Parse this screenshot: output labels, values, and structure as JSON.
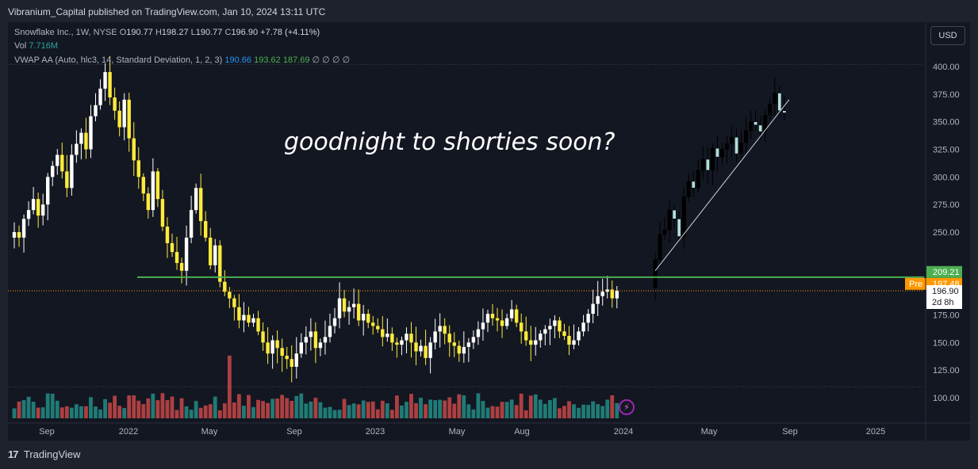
{
  "header": {
    "publisher": "Vibranium_Capital published on TradingView.com, Jan 10, 2024 13:11 UTC"
  },
  "legend": {
    "symbol": "Snowflake Inc., 1W, NYSE",
    "o_label": "O",
    "o_val": "190.77",
    "h_label": "H",
    "h_val": "198.27",
    "l_label": "L",
    "l_val": "190.77",
    "c_label": "C",
    "c_val": "196.90",
    "change": "+7.78 (+4.11%)",
    "vol_label": "Vol",
    "vol_val": "7.716M",
    "vwap_label": "VWAP AA (Auto, hlc3, 14, Standard Deviation, 1, 2, 3)",
    "vwap_v1": "190.66",
    "vwap_v2": "193.62",
    "vwap_v3": "187.69",
    "vwap_rest": "∅ ∅ ∅ ∅"
  },
  "currency_button": "USD",
  "annotation": "goodnight to shorties soon?",
  "footer": {
    "brand": "TradingView"
  },
  "icons": {
    "flash": "lightning-icon",
    "logo": "tradingview-logo-icon"
  },
  "colors": {
    "up": "#ffffff",
    "down": "#ffeb3b",
    "projection": "#000000",
    "projection_up": "#b2dfdb",
    "vol_up": "#26a69a",
    "vol_down": "#ef5350",
    "level_line": "#4caf50",
    "price_line": "#ff9800"
  },
  "chart_data": {
    "type": "candlestick",
    "y_ticks": [
      "400.00",
      "375.00",
      "350.00",
      "325.00",
      "300.00",
      "275.00",
      "250.00",
      "225.00",
      "200.00",
      "175.00",
      "150.00",
      "125.00",
      "100.00"
    ],
    "x_ticks": [
      "Sep",
      "2022",
      "May",
      "Sep",
      "2023",
      "May",
      "Aug",
      "2024",
      "May",
      "Sep",
      "2025"
    ],
    "price_tags": {
      "level": "209.21",
      "pre_label": "Pre",
      "pre": "197.48",
      "last": "196.90",
      "countdown": "2d 8h"
    },
    "ylim": [
      85,
      410
    ],
    "level_line": 209.21,
    "last_price": 196.9,
    "history_start": "2021-07-05",
    "history_closes": [
      250,
      245,
      262,
      270,
      280,
      265,
      275,
      300,
      310,
      320,
      305,
      290,
      320,
      330,
      340,
      325,
      355,
      365,
      380,
      395,
      372,
      360,
      345,
      370,
      335,
      315,
      300,
      285,
      270,
      305,
      280,
      255,
      240,
      232,
      222,
      215,
      245,
      270,
      290,
      260,
      245,
      220,
      238,
      205,
      196,
      190,
      182,
      170,
      175,
      168,
      172,
      160,
      150,
      140,
      152,
      145,
      138,
      135,
      128,
      140,
      150,
      155,
      160,
      145,
      150,
      155,
      165,
      172,
      190,
      178,
      182,
      185,
      170,
      176,
      168,
      165,
      162,
      155,
      158,
      150,
      148,
      152,
      158,
      150,
      142,
      147,
      136,
      150,
      160,
      165,
      158,
      150,
      147,
      140,
      146,
      150,
      155,
      162,
      168,
      176,
      172,
      170,
      165,
      172,
      180,
      168,
      160,
      152,
      148,
      152,
      158,
      162,
      165,
      170,
      160,
      156,
      148,
      152,
      160,
      168,
      176,
      185,
      192,
      196,
      198,
      190,
      196.9
    ],
    "projection_start": "2024-01-29",
    "projection_closes": [
      225,
      248,
      252,
      270,
      262,
      246,
      282,
      296,
      290,
      306,
      316,
      306,
      326,
      318,
      325,
      330,
      336,
      321,
      331,
      342,
      350,
      347,
      341,
      356,
      366,
      376,
      360,
      358
    ]
  }
}
